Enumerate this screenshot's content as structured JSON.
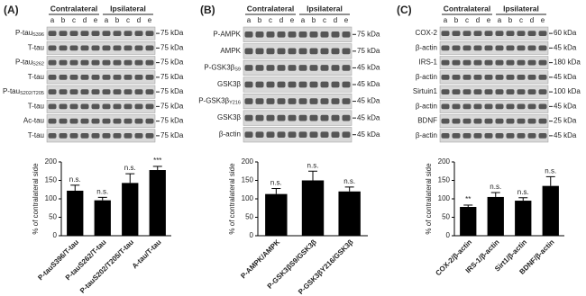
{
  "panels": [
    {
      "label": "(A)",
      "groups": [
        "Contralateral",
        "Ipsilateral"
      ],
      "lanes": [
        "a",
        "b",
        "c",
        "d",
        "e",
        "a",
        "b",
        "c",
        "d",
        "e"
      ],
      "rows": [
        {
          "name": "P-tau",
          "sub": "S396",
          "size": "75 kDa"
        },
        {
          "name": "T-tau",
          "size": "75 kDa"
        },
        {
          "name": "P-tau",
          "sub": "S262",
          "size": "75 kDa"
        },
        {
          "name": "T-tau",
          "size": "75 kDa"
        },
        {
          "name": "P-tau",
          "sub": "S202/T205",
          "size": "75 kDa"
        },
        {
          "name": "T-tau",
          "size": "75 kDa"
        },
        {
          "name": "Ac-tau",
          "size": "75 kDa"
        },
        {
          "name": "T-tau",
          "size": "75 kDa"
        }
      ]
    },
    {
      "label": "(B)",
      "groups": [
        "Contralateral",
        "Ipsilateral"
      ],
      "lanes": [
        "a",
        "b",
        "c",
        "d",
        "e",
        "a",
        "b",
        "c",
        "d",
        "e"
      ],
      "rows": [
        {
          "name": "P-AMPK",
          "size": "75 kDa"
        },
        {
          "name": "AMPK",
          "size": "75 kDa"
        },
        {
          "name": "P-GSK3β",
          "sub": "S9",
          "size": "45 kDa"
        },
        {
          "name": "GSK3β",
          "size": "45 kDa"
        },
        {
          "name": "P-GSK3β",
          "sub": "Y216",
          "size": "45 kDa"
        },
        {
          "name": "GSK3β",
          "size": "45 kDa"
        },
        {
          "name": "β-actin",
          "size": "45 kDa"
        }
      ]
    },
    {
      "label": "(C)",
      "groups": [
        "Contralateral",
        "Ipsilateral"
      ],
      "lanes": [
        "a",
        "b",
        "c",
        "d",
        "e",
        "a",
        "b",
        "c",
        "d",
        "e"
      ],
      "rows": [
        {
          "name": "COX-2",
          "size": "60 kDa"
        },
        {
          "name": "β-actin",
          "size": "45 kDa"
        },
        {
          "name": "IRS-1",
          "size": "180 kDa"
        },
        {
          "name": "β-actin",
          "size": "45 kDa"
        },
        {
          "name": "Sirtuin1",
          "size": "100 kDa"
        },
        {
          "name": "β-actin",
          "size": "45 kDa"
        },
        {
          "name": "BDNF",
          "size": "25 kDa"
        },
        {
          "name": "β-actin",
          "size": "45 kDa"
        }
      ]
    }
  ],
  "chart_data": [
    {
      "type": "bar",
      "ylabel": "% of contralateral side",
      "categories": [
        "P-tauS396/T-tau",
        "P-tauS262/T-tau",
        "P-tauS202/T205/T-tau",
        "A-tau/T-tau"
      ],
      "values": [
        122,
        96,
        143,
        178
      ],
      "errors": [
        15,
        8,
        25,
        10
      ],
      "annotations": [
        "n.s.",
        "n.s.",
        "n.s.",
        "***"
      ],
      "ylim": [
        0,
        200
      ],
      "yticks": [
        0,
        50,
        100,
        150,
        200
      ],
      "color": "#000000"
    },
    {
      "type": "bar",
      "ylabel": "% of contralateral side",
      "categories": [
        "P-AMPK/AMPK",
        "P-GSK3βS9/GSK3β",
        "P-GSK3βY216/GSK3β"
      ],
      "values": [
        113,
        150,
        120
      ],
      "errors": [
        15,
        25,
        12
      ],
      "annotations": [
        "n.s.",
        "n.s.",
        "n.s."
      ],
      "ylim": [
        0,
        200
      ],
      "yticks": [
        0,
        50,
        100,
        150,
        200
      ],
      "color": "#000000"
    },
    {
      "type": "bar",
      "ylabel": "% of contralateral side",
      "categories": [
        "COX-2/β-actin",
        "IRS-1/β-actin",
        "Sirt1/β-actin",
        "BDNF/β-actin"
      ],
      "values": [
        78,
        105,
        95,
        135
      ],
      "errors": [
        5,
        12,
        8,
        25
      ],
      "annotations": [
        "**",
        "n.s.",
        "n.s.",
        "n.s."
      ],
      "ylim": [
        0,
        200
      ],
      "yticks": [
        0,
        50,
        100,
        150,
        200
      ],
      "color": "#000000"
    }
  ]
}
